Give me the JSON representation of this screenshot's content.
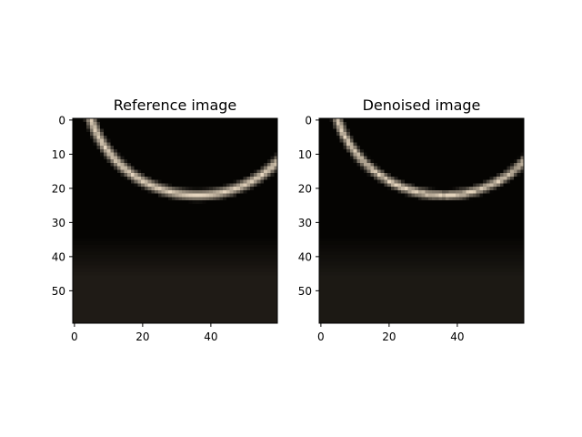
{
  "chart_data": [
    {
      "type": "image",
      "title": "Reference image",
      "xlabel": "",
      "ylabel": "",
      "xlim": [
        -0.5,
        59.5
      ],
      "ylim": [
        59.5,
        -0.5
      ],
      "xticks": [
        0,
        20,
        40
      ],
      "yticks": [
        0,
        10,
        20,
        30,
        40,
        50
      ],
      "xtick_labels": [
        "0",
        "20",
        "40"
      ],
      "ytick_labels": [
        "0",
        "10",
        "20",
        "30",
        "40",
        "50"
      ],
      "grid": false,
      "arc": {
        "cx": 36,
        "cy": -11,
        "r": 33,
        "color": "#e6d6bf",
        "width": 3.2
      },
      "background": {
        "dark_color": "#050402",
        "light_color": "#1f1b16",
        "transition_row": 42
      },
      "noise": false
    },
    {
      "type": "image",
      "title": "Denoised image",
      "xlabel": "",
      "ylabel": "",
      "xlim": [
        -0.5,
        59.5
      ],
      "ylim": [
        59.5,
        -0.5
      ],
      "xticks": [
        0,
        20,
        40
      ],
      "yticks": [
        0,
        10,
        20,
        30,
        40,
        50
      ],
      "xtick_labels": [
        "0",
        "20",
        "40"
      ],
      "ytick_labels": [
        "0",
        "10",
        "20",
        "30",
        "40",
        "50"
      ],
      "grid": false,
      "arc": {
        "cx": 36,
        "cy": -11,
        "r": 33,
        "color": "#e3d3bc",
        "width": 2.9
      },
      "background": {
        "dark_color": "#050402",
        "light_color": "#1c1914",
        "transition_row": 42
      },
      "noise": true
    }
  ]
}
